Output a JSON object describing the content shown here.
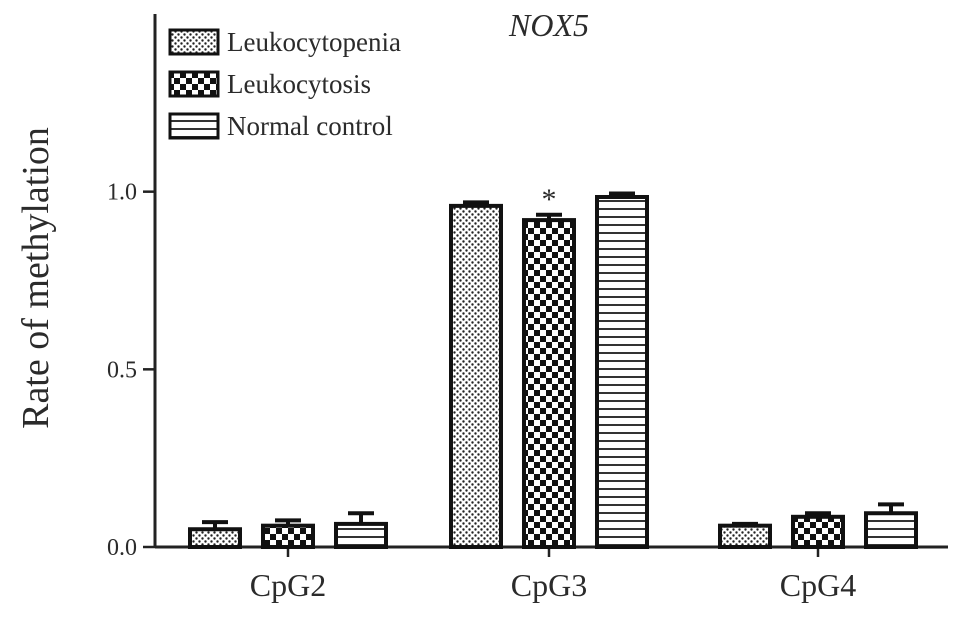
{
  "chart_data": {
    "type": "bar",
    "title": "NOX5",
    "xlabel": "",
    "ylabel": "Rate of methylation",
    "categories": [
      "CpG2",
      "CpG3",
      "CpG4"
    ],
    "ylim": [
      0,
      1.5
    ],
    "yticks": [
      "0.0",
      "0.5",
      "1.0"
    ],
    "legend_position": "top-left",
    "series": [
      {
        "name": "Leukocytopenia",
        "pattern": "dots",
        "values": [
          0.05,
          0.96,
          0.06
        ],
        "errors": [
          0.02,
          0.01,
          0.005
        ]
      },
      {
        "name": "Leukocytosis",
        "pattern": "checker",
        "values": [
          0.06,
          0.92,
          0.085
        ],
        "errors": [
          0.015,
          0.015,
          0.01
        ]
      },
      {
        "name": "Normal control",
        "pattern": "horizontal-lines",
        "values": [
          0.065,
          0.985,
          0.095
        ],
        "errors": [
          0.03,
          0.01,
          0.025
        ]
      }
    ],
    "annotations": [
      {
        "text": "*",
        "category": "CpG3",
        "series": "Leukocytosis"
      }
    ]
  }
}
